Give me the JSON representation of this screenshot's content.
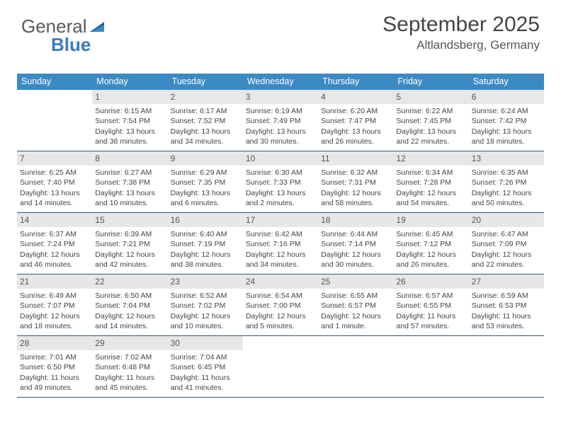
{
  "brand": {
    "part1": "General",
    "part2": "Blue"
  },
  "title": "September 2025",
  "location": "Altlandsberg, Germany",
  "colors": {
    "header_bg": "#3b8ac4",
    "header_text": "#ffffff",
    "daynum_bg": "#e7e7e7",
    "rule": "#2b5a82",
    "logo_blue": "#3b7bbf",
    "text": "#444444"
  },
  "day_names": [
    "Sunday",
    "Monday",
    "Tuesday",
    "Wednesday",
    "Thursday",
    "Friday",
    "Saturday"
  ],
  "weeks": [
    [
      {
        "n": "",
        "sr": "",
        "ss": "",
        "dl": ""
      },
      {
        "n": "1",
        "sr": "Sunrise: 6:15 AM",
        "ss": "Sunset: 7:54 PM",
        "dl": "Daylight: 13 hours and 38 minutes."
      },
      {
        "n": "2",
        "sr": "Sunrise: 6:17 AM",
        "ss": "Sunset: 7:52 PM",
        "dl": "Daylight: 13 hours and 34 minutes."
      },
      {
        "n": "3",
        "sr": "Sunrise: 6:19 AM",
        "ss": "Sunset: 7:49 PM",
        "dl": "Daylight: 13 hours and 30 minutes."
      },
      {
        "n": "4",
        "sr": "Sunrise: 6:20 AM",
        "ss": "Sunset: 7:47 PM",
        "dl": "Daylight: 13 hours and 26 minutes."
      },
      {
        "n": "5",
        "sr": "Sunrise: 6:22 AM",
        "ss": "Sunset: 7:45 PM",
        "dl": "Daylight: 13 hours and 22 minutes."
      },
      {
        "n": "6",
        "sr": "Sunrise: 6:24 AM",
        "ss": "Sunset: 7:42 PM",
        "dl": "Daylight: 13 hours and 18 minutes."
      }
    ],
    [
      {
        "n": "7",
        "sr": "Sunrise: 6:25 AM",
        "ss": "Sunset: 7:40 PM",
        "dl": "Daylight: 13 hours and 14 minutes."
      },
      {
        "n": "8",
        "sr": "Sunrise: 6:27 AM",
        "ss": "Sunset: 7:38 PM",
        "dl": "Daylight: 13 hours and 10 minutes."
      },
      {
        "n": "9",
        "sr": "Sunrise: 6:29 AM",
        "ss": "Sunset: 7:35 PM",
        "dl": "Daylight: 13 hours and 6 minutes."
      },
      {
        "n": "10",
        "sr": "Sunrise: 6:30 AM",
        "ss": "Sunset: 7:33 PM",
        "dl": "Daylight: 13 hours and 2 minutes."
      },
      {
        "n": "11",
        "sr": "Sunrise: 6:32 AM",
        "ss": "Sunset: 7:31 PM",
        "dl": "Daylight: 12 hours and 58 minutes."
      },
      {
        "n": "12",
        "sr": "Sunrise: 6:34 AM",
        "ss": "Sunset: 7:28 PM",
        "dl": "Daylight: 12 hours and 54 minutes."
      },
      {
        "n": "13",
        "sr": "Sunrise: 6:35 AM",
        "ss": "Sunset: 7:26 PM",
        "dl": "Daylight: 12 hours and 50 minutes."
      }
    ],
    [
      {
        "n": "14",
        "sr": "Sunrise: 6:37 AM",
        "ss": "Sunset: 7:24 PM",
        "dl": "Daylight: 12 hours and 46 minutes."
      },
      {
        "n": "15",
        "sr": "Sunrise: 6:39 AM",
        "ss": "Sunset: 7:21 PM",
        "dl": "Daylight: 12 hours and 42 minutes."
      },
      {
        "n": "16",
        "sr": "Sunrise: 6:40 AM",
        "ss": "Sunset: 7:19 PM",
        "dl": "Daylight: 12 hours and 38 minutes."
      },
      {
        "n": "17",
        "sr": "Sunrise: 6:42 AM",
        "ss": "Sunset: 7:16 PM",
        "dl": "Daylight: 12 hours and 34 minutes."
      },
      {
        "n": "18",
        "sr": "Sunrise: 6:44 AM",
        "ss": "Sunset: 7:14 PM",
        "dl": "Daylight: 12 hours and 30 minutes."
      },
      {
        "n": "19",
        "sr": "Sunrise: 6:45 AM",
        "ss": "Sunset: 7:12 PM",
        "dl": "Daylight: 12 hours and 26 minutes."
      },
      {
        "n": "20",
        "sr": "Sunrise: 6:47 AM",
        "ss": "Sunset: 7:09 PM",
        "dl": "Daylight: 12 hours and 22 minutes."
      }
    ],
    [
      {
        "n": "21",
        "sr": "Sunrise: 6:49 AM",
        "ss": "Sunset: 7:07 PM",
        "dl": "Daylight: 12 hours and 18 minutes."
      },
      {
        "n": "22",
        "sr": "Sunrise: 6:50 AM",
        "ss": "Sunset: 7:04 PM",
        "dl": "Daylight: 12 hours and 14 minutes."
      },
      {
        "n": "23",
        "sr": "Sunrise: 6:52 AM",
        "ss": "Sunset: 7:02 PM",
        "dl": "Daylight: 12 hours and 10 minutes."
      },
      {
        "n": "24",
        "sr": "Sunrise: 6:54 AM",
        "ss": "Sunset: 7:00 PM",
        "dl": "Daylight: 12 hours and 5 minutes."
      },
      {
        "n": "25",
        "sr": "Sunrise: 6:55 AM",
        "ss": "Sunset: 6:57 PM",
        "dl": "Daylight: 12 hours and 1 minute."
      },
      {
        "n": "26",
        "sr": "Sunrise: 6:57 AM",
        "ss": "Sunset: 6:55 PM",
        "dl": "Daylight: 11 hours and 57 minutes."
      },
      {
        "n": "27",
        "sr": "Sunrise: 6:59 AM",
        "ss": "Sunset: 6:53 PM",
        "dl": "Daylight: 11 hours and 53 minutes."
      }
    ],
    [
      {
        "n": "28",
        "sr": "Sunrise: 7:01 AM",
        "ss": "Sunset: 6:50 PM",
        "dl": "Daylight: 11 hours and 49 minutes."
      },
      {
        "n": "29",
        "sr": "Sunrise: 7:02 AM",
        "ss": "Sunset: 6:48 PM",
        "dl": "Daylight: 11 hours and 45 minutes."
      },
      {
        "n": "30",
        "sr": "Sunrise: 7:04 AM",
        "ss": "Sunset: 6:45 PM",
        "dl": "Daylight: 11 hours and 41 minutes."
      },
      {
        "n": "",
        "sr": "",
        "ss": "",
        "dl": ""
      },
      {
        "n": "",
        "sr": "",
        "ss": "",
        "dl": ""
      },
      {
        "n": "",
        "sr": "",
        "ss": "",
        "dl": ""
      },
      {
        "n": "",
        "sr": "",
        "ss": "",
        "dl": ""
      }
    ]
  ]
}
